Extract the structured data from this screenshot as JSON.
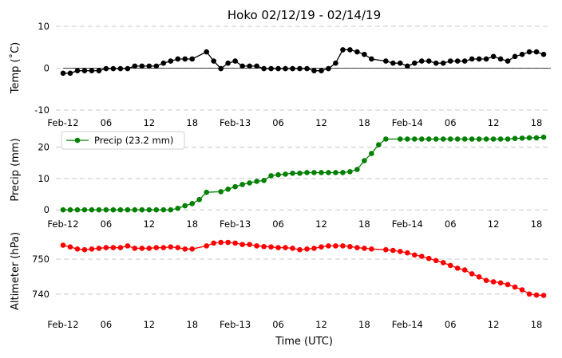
{
  "chart_data": {
    "title": "Hoko 02/12/19 - 02/14/19",
    "xlabel": "Time (UTC)",
    "x_ticks": [
      "Feb-12",
      "06",
      "12",
      "18",
      "Feb-13",
      "06",
      "12",
      "18",
      "Feb-14",
      "06",
      "12",
      "18"
    ],
    "x_tick_hours": [
      0,
      6,
      12,
      18,
      24,
      30,
      36,
      42,
      48,
      54,
      60,
      66
    ],
    "panels": [
      {
        "type": "line",
        "ylabel": "Temp (˚C)",
        "ylim": [
          -10,
          10
        ],
        "yticks": [
          -10,
          0,
          10
        ],
        "grid": true,
        "zero_line": true,
        "color": "#000000",
        "series": [
          {
            "values": [
              [
                0,
                -1.2
              ],
              [
                1,
                -1.2
              ],
              [
                2,
                -0.6
              ],
              [
                3,
                -0.6
              ],
              [
                4,
                -0.6
              ],
              [
                5,
                -0.6
              ],
              [
                6,
                -0.1
              ],
              [
                7,
                -0.1
              ],
              [
                8,
                -0.1
              ],
              [
                9,
                -0.1
              ],
              [
                10,
                0.5
              ],
              [
                11,
                0.5
              ],
              [
                12,
                0.5
              ],
              [
                13,
                0.5
              ],
              [
                14,
                1.2
              ],
              [
                15,
                1.7
              ],
              [
                16,
                2.2
              ],
              [
                17,
                2.2
              ],
              [
                18,
                2.2
              ],
              [
                20,
                3.9
              ],
              [
                21,
                1.7
              ],
              [
                22,
                -0.1
              ],
              [
                23,
                1.2
              ],
              [
                24,
                1.7
              ],
              [
                25,
                0.5
              ],
              [
                26,
                0.5
              ],
              [
                27,
                0.5
              ],
              [
                28,
                -0.1
              ],
              [
                29,
                -0.1
              ],
              [
                30,
                -0.1
              ],
              [
                31,
                -0.1
              ],
              [
                32,
                -0.1
              ],
              [
                33,
                -0.1
              ],
              [
                34,
                -0.1
              ],
              [
                35,
                -0.6
              ],
              [
                36,
                -0.6
              ],
              [
                37,
                -0.1
              ],
              [
                38,
                1.2
              ],
              [
                39,
                4.4
              ],
              [
                40,
                4.4
              ],
              [
                41,
                3.9
              ],
              [
                42,
                3.3
              ],
              [
                43,
                2.2
              ],
              [
                45,
                1.7
              ],
              [
                46,
                1.2
              ],
              [
                47,
                1.2
              ],
              [
                48,
                0.5
              ],
              [
                49,
                1.2
              ],
              [
                50,
                1.7
              ],
              [
                51,
                1.7
              ],
              [
                52,
                1.2
              ],
              [
                53,
                1.2
              ],
              [
                54,
                1.7
              ],
              [
                55,
                1.7
              ],
              [
                56,
                1.7
              ],
              [
                57,
                2.2
              ],
              [
                58,
                2.2
              ],
              [
                59,
                2.2
              ],
              [
                60,
                2.8
              ],
              [
                61,
                2.2
              ],
              [
                62,
                1.7
              ],
              [
                63,
                2.8
              ],
              [
                64,
                3.3
              ],
              [
                65,
                3.9
              ],
              [
                66,
                3.9
              ],
              [
                67,
                3.3
              ]
            ]
          }
        ]
      },
      {
        "type": "line",
        "ylabel": "Precip (mm)",
        "ylim": [
          -3,
          25
        ],
        "yticks": [
          0,
          10,
          20
        ],
        "grid": true,
        "legend": "upper left",
        "color": "#008000",
        "series": [
          {
            "name": "Precip (23.2 mm)",
            "values": [
              [
                0,
                0
              ],
              [
                1,
                0
              ],
              [
                2,
                0
              ],
              [
                3,
                0
              ],
              [
                4,
                0
              ],
              [
                5,
                0
              ],
              [
                6,
                0
              ],
              [
                7,
                0
              ],
              [
                8,
                0
              ],
              [
                9,
                0
              ],
              [
                10,
                0
              ],
              [
                11,
                0
              ],
              [
                12,
                0
              ],
              [
                13,
                0
              ],
              [
                14,
                0
              ],
              [
                15,
                0
              ],
              [
                16,
                0.5
              ],
              [
                17,
                1.3
              ],
              [
                18,
                2.0
              ],
              [
                19,
                3.3
              ],
              [
                20,
                5.6
              ],
              [
                22,
                5.8
              ],
              [
                23,
                6.6
              ],
              [
                24,
                7.4
              ],
              [
                25,
                8.1
              ],
              [
                26,
                8.6
              ],
              [
                27,
                9.1
              ],
              [
                28,
                9.4
              ],
              [
                29,
                10.9
              ],
              [
                30,
                11.2
              ],
              [
                31,
                11.4
              ],
              [
                32,
                11.7
              ],
              [
                33,
                11.7
              ],
              [
                34,
                11.9
              ],
              [
                35,
                11.9
              ],
              [
                36,
                11.9
              ],
              [
                37,
                11.9
              ],
              [
                38,
                11.9
              ],
              [
                39,
                11.9
              ],
              [
                40,
                12.2
              ],
              [
                41,
                12.9
              ],
              [
                42,
                15.7
              ],
              [
                43,
                18.0
              ],
              [
                44,
                20.8
              ],
              [
                45,
                22.6
              ],
              [
                47,
                22.6
              ],
              [
                48,
                22.6
              ],
              [
                49,
                22.6
              ],
              [
                50,
                22.6
              ],
              [
                51,
                22.6
              ],
              [
                52,
                22.6
              ],
              [
                53,
                22.6
              ],
              [
                54,
                22.6
              ],
              [
                55,
                22.6
              ],
              [
                56,
                22.6
              ],
              [
                57,
                22.6
              ],
              [
                58,
                22.6
              ],
              [
                59,
                22.6
              ],
              [
                60,
                22.6
              ],
              [
                61,
                22.6
              ],
              [
                62,
                22.6
              ],
              [
                63,
                22.8
              ],
              [
                64,
                22.9
              ],
              [
                65,
                23.0
              ],
              [
                66,
                23.0
              ],
              [
                67,
                23.2
              ]
            ]
          }
        ]
      },
      {
        "type": "line",
        "ylabel": "Altimeter (hPa)",
        "ylim": [
          734,
          758
        ],
        "yticks": [
          740,
          750
        ],
        "grid": true,
        "color": "#ff0000",
        "series": [
          {
            "values": [
              [
                0,
                754.0
              ],
              [
                1,
                753.5
              ],
              [
                2,
                752.9
              ],
              [
                3,
                752.7
              ],
              [
                4,
                752.9
              ],
              [
                5,
                753.1
              ],
              [
                6,
                753.3
              ],
              [
                7,
                753.3
              ],
              [
                8,
                753.3
              ],
              [
                9,
                753.8
              ],
              [
                10,
                753.1
              ],
              [
                11,
                753.1
              ],
              [
                12,
                753.1
              ],
              [
                13,
                753.3
              ],
              [
                14,
                753.3
              ],
              [
                15,
                753.5
              ],
              [
                16,
                753.3
              ],
              [
                17,
                752.9
              ],
              [
                18,
                752.9
              ],
              [
                20,
                753.8
              ],
              [
                21,
                754.6
              ],
              [
                22,
                754.8
              ],
              [
                23,
                754.8
              ],
              [
                24,
                754.6
              ],
              [
                25,
                754.2
              ],
              [
                26,
                754.2
              ],
              [
                27,
                753.8
              ],
              [
                28,
                753.6
              ],
              [
                29,
                753.5
              ],
              [
                30,
                753.3
              ],
              [
                31,
                753.3
              ],
              [
                32,
                753.1
              ],
              [
                33,
                752.7
              ],
              [
                34,
                752.9
              ],
              [
                35,
                753.1
              ],
              [
                36,
                753.5
              ],
              [
                37,
                753.8
              ],
              [
                38,
                753.8
              ],
              [
                39,
                753.8
              ],
              [
                40,
                753.6
              ],
              [
                41,
                753.3
              ],
              [
                42,
                753.1
              ],
              [
                43,
                752.9
              ],
              [
                45,
                752.7
              ],
              [
                46,
                752.5
              ],
              [
                47,
                752.2
              ],
              [
                48,
                751.8
              ],
              [
                49,
                751.2
              ],
              [
                50,
                750.8
              ],
              [
                51,
                750.2
              ],
              [
                52,
                749.6
              ],
              [
                53,
                749.0
              ],
              [
                54,
                748.2
              ],
              [
                55,
                747.4
              ],
              [
                56,
                746.9
              ],
              [
                57,
                745.8
              ],
              [
                58,
                744.9
              ],
              [
                59,
                743.9
              ],
              [
                60,
                743.5
              ],
              [
                61,
                743.2
              ],
              [
                62,
                742.7
              ],
              [
                63,
                742.0
              ],
              [
                64,
                741.2
              ],
              [
                65,
                740.0
              ],
              [
                66,
                739.7
              ],
              [
                67,
                739.6
              ]
            ]
          }
        ]
      }
    ]
  }
}
